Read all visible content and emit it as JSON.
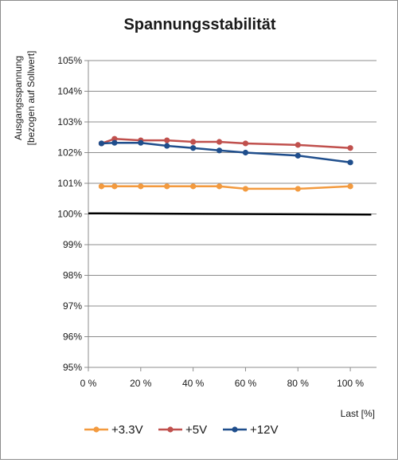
{
  "chart_data": {
    "type": "line",
    "title": "Spannungsstabilität",
    "ylabel_lines": [
      "Ausgangsspannung",
      "[bezogen auf Sollwert]"
    ],
    "xlabel": "Last [%]",
    "xlim": [
      0,
      110
    ],
    "ylim": [
      95,
      105
    ],
    "x_ticks": [
      0,
      20,
      40,
      60,
      80,
      100
    ],
    "x_tick_labels": [
      "0 %",
      "20 %",
      "40 %",
      "60 %",
      "80 %",
      "100 %"
    ],
    "y_ticks": [
      95,
      96,
      97,
      98,
      99,
      100,
      101,
      102,
      103,
      104,
      105
    ],
    "y_tick_labels": [
      "95%",
      "96%",
      "97%",
      "98%",
      "99%",
      "100%",
      "101%",
      "102%",
      "103%",
      "104%",
      "105%"
    ],
    "grid": "horizontal",
    "reference_line": {
      "from": [
        0,
        100.02
      ],
      "to": [
        108,
        99.98
      ],
      "color": "#000000"
    },
    "legend_position": "bottom",
    "series": [
      {
        "name": "+3.3V",
        "color": "#f39a3e",
        "x": [
          5,
          10,
          20,
          30,
          40,
          50,
          60,
          80,
          100
        ],
        "values": [
          100.9,
          100.9,
          100.9,
          100.9,
          100.9,
          100.9,
          100.82,
          100.82,
          100.9
        ]
      },
      {
        "name": "+5V",
        "color": "#c0504d",
        "x": [
          5,
          10,
          20,
          30,
          40,
          50,
          60,
          80,
          100
        ],
        "values": [
          102.3,
          102.45,
          102.4,
          102.4,
          102.35,
          102.35,
          102.3,
          102.25,
          102.15
        ]
      },
      {
        "name": "+12V",
        "color": "#1f4e8c",
        "x": [
          5,
          10,
          20,
          30,
          40,
          50,
          60,
          80,
          100
        ],
        "values": [
          102.3,
          102.32,
          102.32,
          102.22,
          102.15,
          102.07,
          102.0,
          101.9,
          101.68
        ]
      }
    ]
  }
}
